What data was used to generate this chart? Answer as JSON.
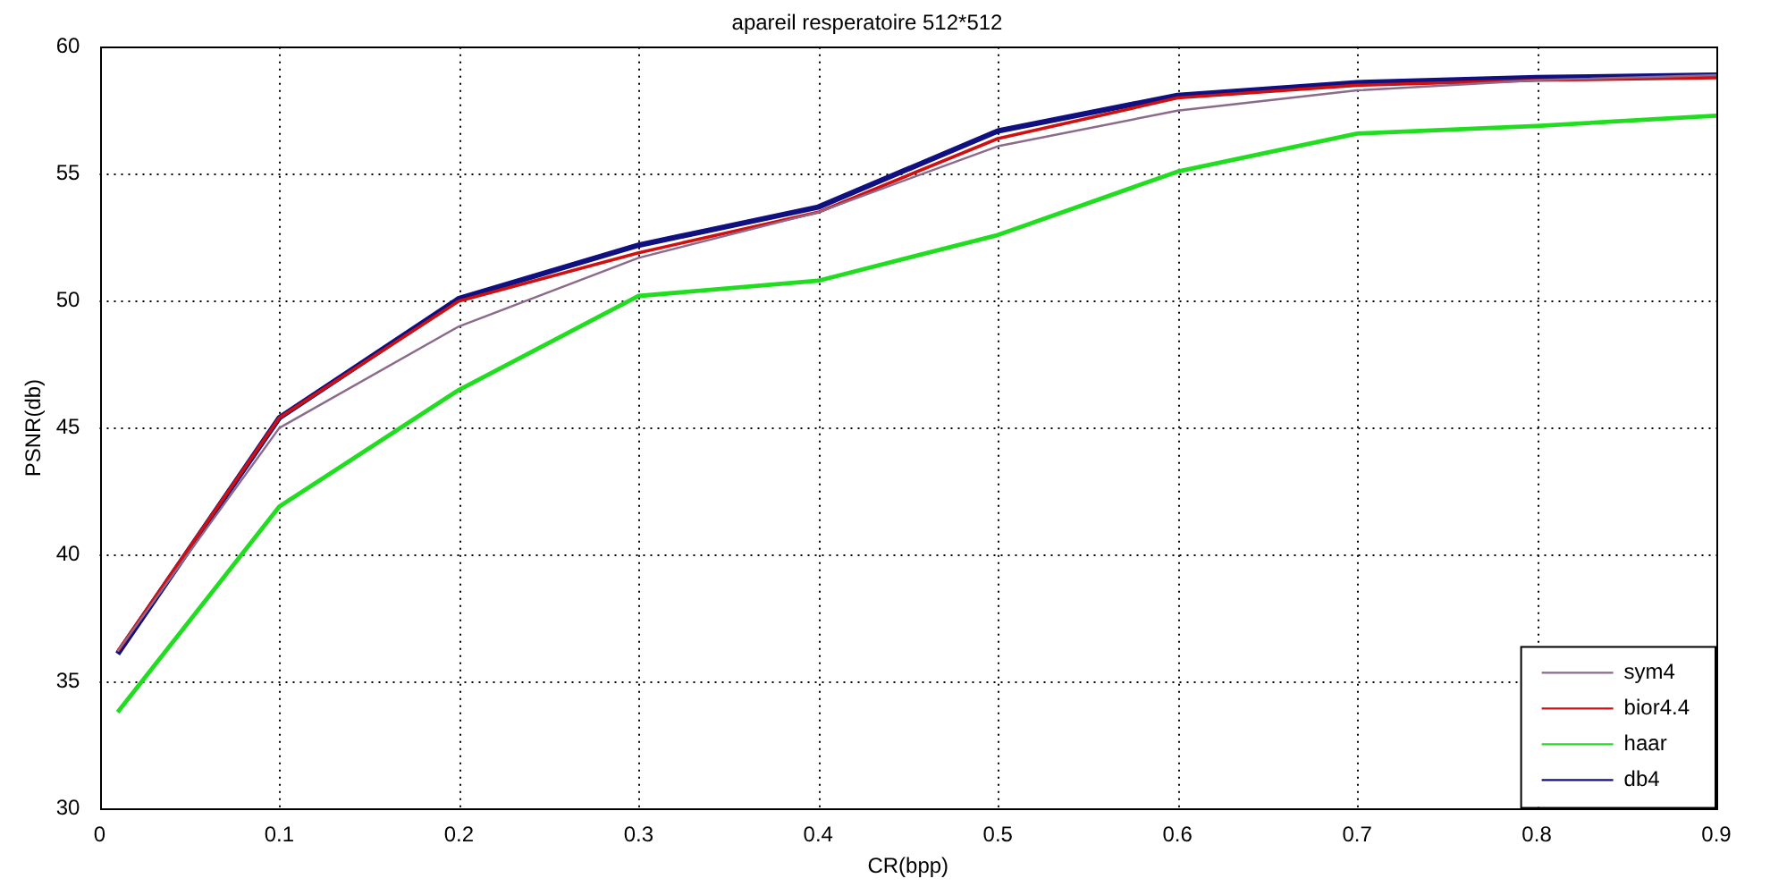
{
  "chart_data": {
    "type": "line",
    "title": "apareil resperatoire 512*512",
    "xlabel": "CR(bpp)",
    "ylabel": "PSNR(db)",
    "x": [
      0.01,
      0.1,
      0.2,
      0.3,
      0.4,
      0.5,
      0.6,
      0.7,
      0.8,
      0.9
    ],
    "series": [
      {
        "name": "sym4",
        "color": "#8b6a8b",
        "values": [
          36.2,
          45.0,
          49.0,
          51.7,
          53.5,
          56.1,
          57.5,
          58.3,
          58.7,
          58.9
        ]
      },
      {
        "name": "bior4.4",
        "color": "#d01010",
        "values": [
          36.2,
          45.4,
          50.0,
          51.9,
          53.5,
          56.4,
          58.0,
          58.5,
          58.7,
          58.8
        ]
      },
      {
        "name": "haar",
        "color": "#20dd20",
        "values": [
          33.8,
          41.9,
          46.5,
          50.2,
          50.8,
          52.6,
          55.1,
          56.6,
          56.9,
          57.3
        ]
      },
      {
        "name": "db4",
        "color": "#101080",
        "values": [
          36.1,
          45.4,
          50.1,
          52.2,
          53.7,
          56.7,
          58.1,
          58.6,
          58.8,
          58.9
        ]
      }
    ],
    "xlim": [
      0,
      0.9
    ],
    "xticks": [
      0,
      0.1,
      0.2,
      0.3,
      0.4,
      0.5,
      0.6,
      0.7,
      0.8,
      0.9
    ],
    "ylim": [
      30,
      60
    ],
    "yticks": [
      30,
      35,
      40,
      45,
      50,
      55,
      60
    ],
    "grid": true,
    "legend": "bottom right",
    "marker": "none",
    "line_style": "solid"
  }
}
